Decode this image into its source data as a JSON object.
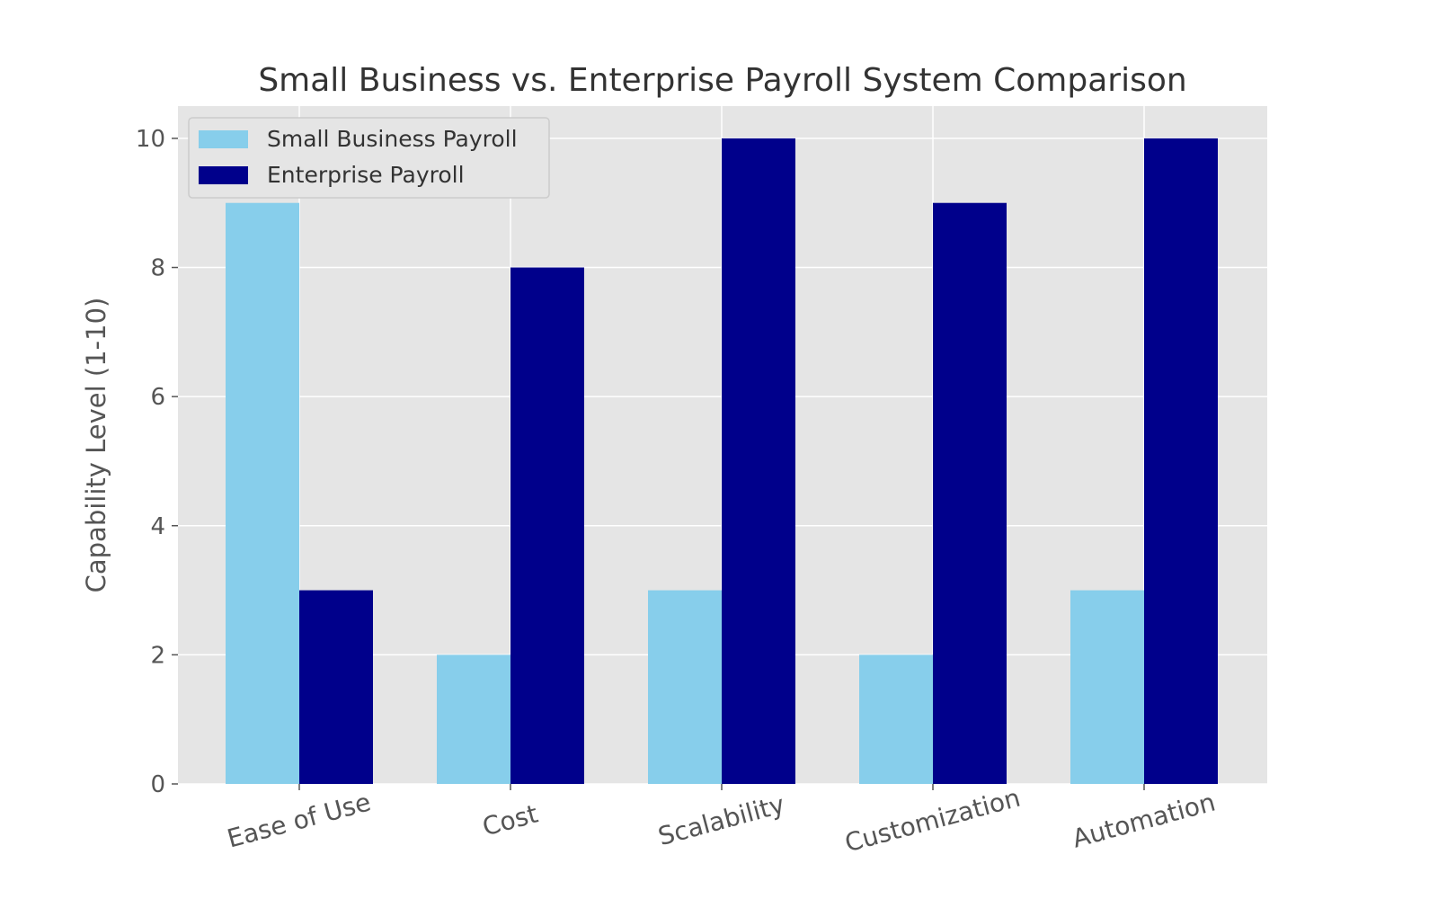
{
  "chart_data": {
    "type": "bar",
    "title": "Small Business vs. Enterprise Payroll System Comparison",
    "xlabel": "",
    "ylabel": "Capability Level (1-10)",
    "categories": [
      "Ease of Use",
      "Cost",
      "Scalability",
      "Customization",
      "Automation"
    ],
    "series": [
      {
        "name": "Small Business Payroll",
        "values": [
          9,
          2,
          3,
          2,
          3
        ],
        "color": "#87CEEB"
      },
      {
        "name": "Enterprise Payroll",
        "values": [
          3,
          8,
          10,
          9,
          10
        ],
        "color": "#00008B"
      }
    ],
    "ylim": [
      0,
      10.5
    ],
    "yticks": [
      0,
      2,
      4,
      6,
      8,
      10
    ],
    "grid": true,
    "legend": "upper-left",
    "background": "#E5E5E5"
  }
}
